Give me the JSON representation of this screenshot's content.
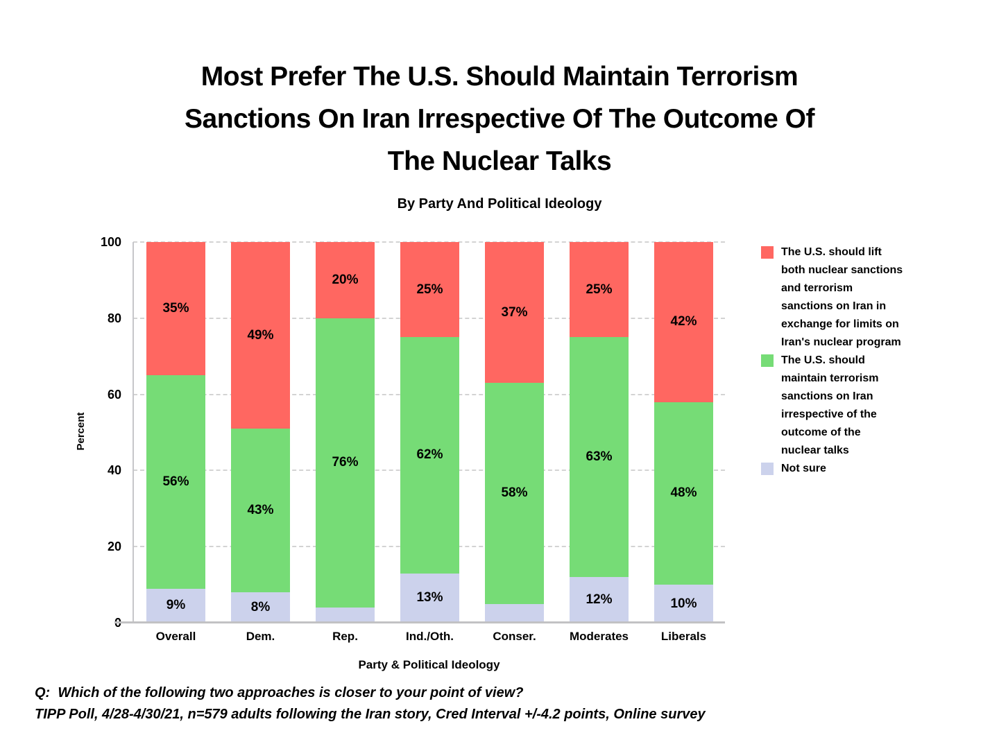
{
  "header": {
    "title_lines": [
      "Most Prefer The U.S. Should Maintain Terrorism",
      "Sanctions On Iran Irrespective Of The Outcome Of",
      "The Nuclear Talks"
    ],
    "subtitle": "By Party And Political Ideology"
  },
  "chart_data": {
    "type": "bar",
    "stacked": true,
    "title": "Most Prefer The U.S. Should Maintain Terrorism Sanctions On Iran Irrespective Of The Outcome Of The Nuclear Talks",
    "subtitle": "By Party And Political Ideology",
    "xlabel": "Party & Political Ideology",
    "ylabel": "Percent",
    "ylim": [
      0,
      100
    ],
    "yticks": [
      0,
      20,
      40,
      60,
      80,
      100
    ],
    "grid": "horizontal-dashed",
    "legend_position": "right",
    "categories": [
      "Overall",
      "Dem.",
      "Rep.",
      "Ind./Oth.",
      "Conser.",
      "Moderates",
      "Liberals"
    ],
    "series": [
      {
        "name": "Not sure",
        "color": "#CCD2EC",
        "values": [
          9,
          8,
          4,
          13,
          5,
          12,
          10
        ],
        "labels": [
          "9%",
          "8%",
          null,
          "13%",
          null,
          "12%",
          "10%"
        ]
      },
      {
        "name": "The U.S. should maintain terrorism sanctions on Iran irrespective of the outcome of the nuclear talks",
        "color": "#76DC76",
        "values": [
          56,
          43,
          76,
          62,
          58,
          63,
          48
        ],
        "labels": [
          "56%",
          "43%",
          "76%",
          "62%",
          "58%",
          "63%",
          "48%"
        ]
      },
      {
        "name": "The U.S. should lift both nuclear sanctions and terrorism sanctions on Iran in exchange for limits on Iran's nuclear program",
        "color": "#FF6761",
        "values": [
          35,
          49,
          20,
          25,
          37,
          25,
          42
        ],
        "labels": [
          "35%",
          "49%",
          "20%",
          "25%",
          "37%",
          "25%",
          "42%"
        ]
      }
    ],
    "legend_order": [
      2,
      1,
      0
    ],
    "colors": {
      "grid": "#d3d3d3",
      "axis": "#c2c2c4",
      "label_text": "#000000"
    }
  },
  "footer": {
    "lines": [
      "Q:  Which of the following two approaches is closer to your point of view?",
      "TIPP Poll, 4/28-4/30/21, n=579 adults following the Iran story, Cred Interval +/-4.2 points, Online survey"
    ]
  }
}
